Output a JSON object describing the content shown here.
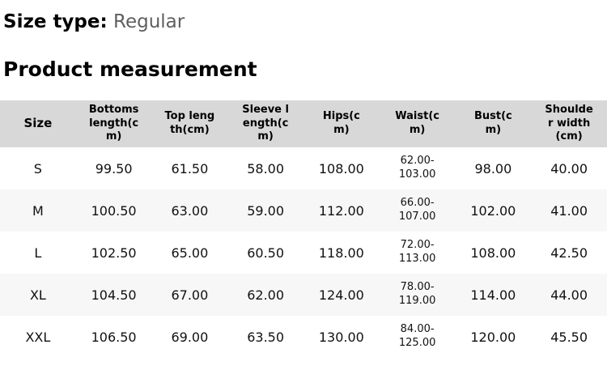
{
  "header": {
    "size_type_label": "Size type:",
    "size_type_value": "Regular",
    "section_title": "Product measurement"
  },
  "table": {
    "columns": [
      "Size",
      "Bottoms length(cm)",
      "Top length(cm)",
      "Sleeve length(cm)",
      "Hips(cm)",
      "Waist(cm)",
      "Bust(cm)",
      "Shoulder width(cm)"
    ],
    "rows": [
      {
        "size": "S",
        "bottoms_length": "99.50",
        "top_length": "61.50",
        "sleeve_length": "58.00",
        "hips": "108.00",
        "waist": "62.00-103.00",
        "bust": "98.00",
        "shoulder_width": "40.00"
      },
      {
        "size": "M",
        "bottoms_length": "100.50",
        "top_length": "63.00",
        "sleeve_length": "59.00",
        "hips": "112.00",
        "waist": "66.00-107.00",
        "bust": "102.00",
        "shoulder_width": "41.00"
      },
      {
        "size": "L",
        "bottoms_length": "102.50",
        "top_length": "65.00",
        "sleeve_length": "60.50",
        "hips": "118.00",
        "waist": "72.00-113.00",
        "bust": "108.00",
        "shoulder_width": "42.50"
      },
      {
        "size": "XL",
        "bottoms_length": "104.50",
        "top_length": "67.00",
        "sleeve_length": "62.00",
        "hips": "124.00",
        "waist": "78.00-119.00",
        "bust": "114.00",
        "shoulder_width": "44.00"
      },
      {
        "size": "XXL",
        "bottoms_length": "106.50",
        "top_length": "69.00",
        "sleeve_length": "63.50",
        "hips": "130.00",
        "waist": "84.00-125.00",
        "bust": "120.00",
        "shoulder_width": "45.50"
      }
    ]
  },
  "colors": {
    "header_bg": "#d8d8d8",
    "alt_row_bg": "#f7f7f7",
    "text": "#111111",
    "muted_text": "#5f5f5f"
  }
}
